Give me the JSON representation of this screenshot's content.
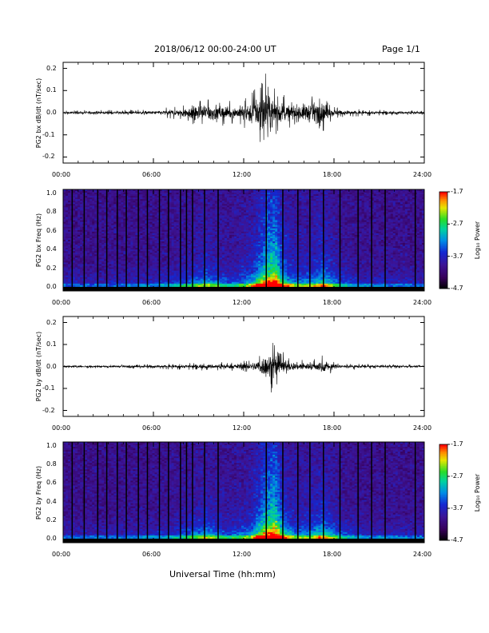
{
  "header": {
    "title": "2018/06/12  00:00-24:00 UT",
    "page": "Page 1/1"
  },
  "footer": {
    "xlabel": "Universal Time (hh:mm)"
  },
  "x_ticks": [
    "00:00",
    "06:00",
    "12:00",
    "18:00",
    "24:00"
  ],
  "colorbar_ticks": [
    "-1.7",
    "-2.7",
    "-3.7",
    "-4.7"
  ],
  "colorbar_label": "Log₁₀ Power",
  "colors": {
    "background": "#ffffff",
    "trace": "#000000"
  },
  "chart_data": [
    {
      "type": "line",
      "name": "PG2 bx dB/dt",
      "ylabel": "PG2 bx dB/dt (nT/sec)",
      "ylim": [
        -0.2,
        0.2
      ],
      "yticks": [
        "0.2",
        "0.1",
        "0.0",
        "-0.1",
        "-0.2"
      ],
      "xlim_hours": [
        0,
        24
      ],
      "amplitude_envelope": {
        "hours": [
          0,
          2,
          4,
          6,
          7.5,
          8.5,
          9.5,
          10.5,
          11.5,
          12.5,
          13.3,
          13.8,
          14.3,
          15,
          16,
          17,
          17.4,
          18,
          19,
          20,
          22,
          24
        ],
        "max_abs": [
          0.01,
          0.012,
          0.012,
          0.015,
          0.03,
          0.06,
          0.09,
          0.06,
          0.05,
          0.1,
          0.2,
          0.15,
          0.1,
          0.07,
          0.08,
          0.1,
          0.08,
          0.03,
          0.02,
          0.015,
          0.012,
          0.01
        ]
      }
    },
    {
      "type": "heatmap",
      "name": "PG2 bx Freq spectrogram",
      "ylabel": "PG2 bx Freq (Hz)",
      "ylim": [
        0.0,
        1.0
      ],
      "yticks": [
        "1.0",
        "0.8",
        "0.6",
        "0.4",
        "0.2",
        "0.0"
      ],
      "color_range_log10_power": [
        -4.7,
        -1.7
      ],
      "colorscale": "rainbow (black-purple-blue-cyan-green-yellow-red)",
      "data_gaps_hours": [
        0.6,
        1.4,
        2.3,
        2.9,
        3.6,
        4.2,
        5.0,
        5.6,
        6.4,
        7.0,
        7.8,
        8.2,
        8.6,
        9.4,
        10.3,
        13.5,
        14.6,
        15.6,
        16.4,
        17.3,
        18.4,
        19.6,
        20.5,
        21.4,
        23.4
      ],
      "activity_envelope": {
        "hours": [
          0,
          3,
          6,
          8,
          9.5,
          11,
          12.5,
          13.5,
          14.1,
          14.6,
          15.5,
          16.5,
          17.3,
          18.5,
          20,
          24
        ],
        "strength": [
          0.15,
          0.15,
          0.2,
          0.3,
          0.45,
          0.3,
          0.45,
          0.85,
          0.95,
          0.6,
          0.4,
          0.45,
          0.55,
          0.3,
          0.2,
          0.15
        ]
      }
    },
    {
      "type": "line",
      "name": "PG2 by dB/dt",
      "ylabel": "PG2 by dB/dt (nT/sec)",
      "ylim": [
        -0.2,
        0.2
      ],
      "yticks": [
        "0.2",
        "0.1",
        "0.0",
        "-0.1",
        "-0.2"
      ],
      "xlim_hours": [
        0,
        24
      ],
      "amplitude_envelope": {
        "hours": [
          0,
          3,
          6,
          8,
          9.5,
          11,
          12.5,
          13.2,
          13.8,
          14.3,
          15,
          16.5,
          17.3,
          18,
          20,
          24
        ],
        "max_abs": [
          0.008,
          0.008,
          0.012,
          0.015,
          0.02,
          0.02,
          0.03,
          0.08,
          0.13,
          0.1,
          0.04,
          0.03,
          0.06,
          0.02,
          0.012,
          0.008
        ]
      }
    },
    {
      "type": "heatmap",
      "name": "PG2 by Freq spectrogram",
      "ylabel": "PG2 by Freq (Hz)",
      "ylim": [
        0.0,
        1.0
      ],
      "yticks": [
        "1.0",
        "0.8",
        "0.6",
        "0.4",
        "0.2",
        "0.0"
      ],
      "color_range_log10_power": [
        -4.7,
        -1.7
      ],
      "colorscale": "rainbow (black-purple-blue-cyan-green-yellow-red)",
      "data_gaps_hours": [
        0.6,
        1.4,
        2.3,
        2.9,
        3.6,
        4.2,
        5.0,
        5.6,
        6.4,
        7.0,
        7.8,
        8.2,
        8.6,
        9.4,
        10.3,
        13.5,
        14.6,
        15.6,
        16.4,
        17.3,
        18.4,
        19.6,
        20.5,
        21.4,
        23.4
      ],
      "activity_envelope": {
        "hours": [
          0,
          3,
          6,
          8,
          9.5,
          11,
          12.5,
          13.5,
          14.1,
          14.6,
          15.5,
          16.5,
          17.3,
          18.5,
          20,
          24
        ],
        "strength": [
          0.15,
          0.15,
          0.2,
          0.3,
          0.45,
          0.3,
          0.45,
          0.85,
          0.95,
          0.6,
          0.4,
          0.45,
          0.55,
          0.3,
          0.2,
          0.15
        ]
      }
    }
  ]
}
